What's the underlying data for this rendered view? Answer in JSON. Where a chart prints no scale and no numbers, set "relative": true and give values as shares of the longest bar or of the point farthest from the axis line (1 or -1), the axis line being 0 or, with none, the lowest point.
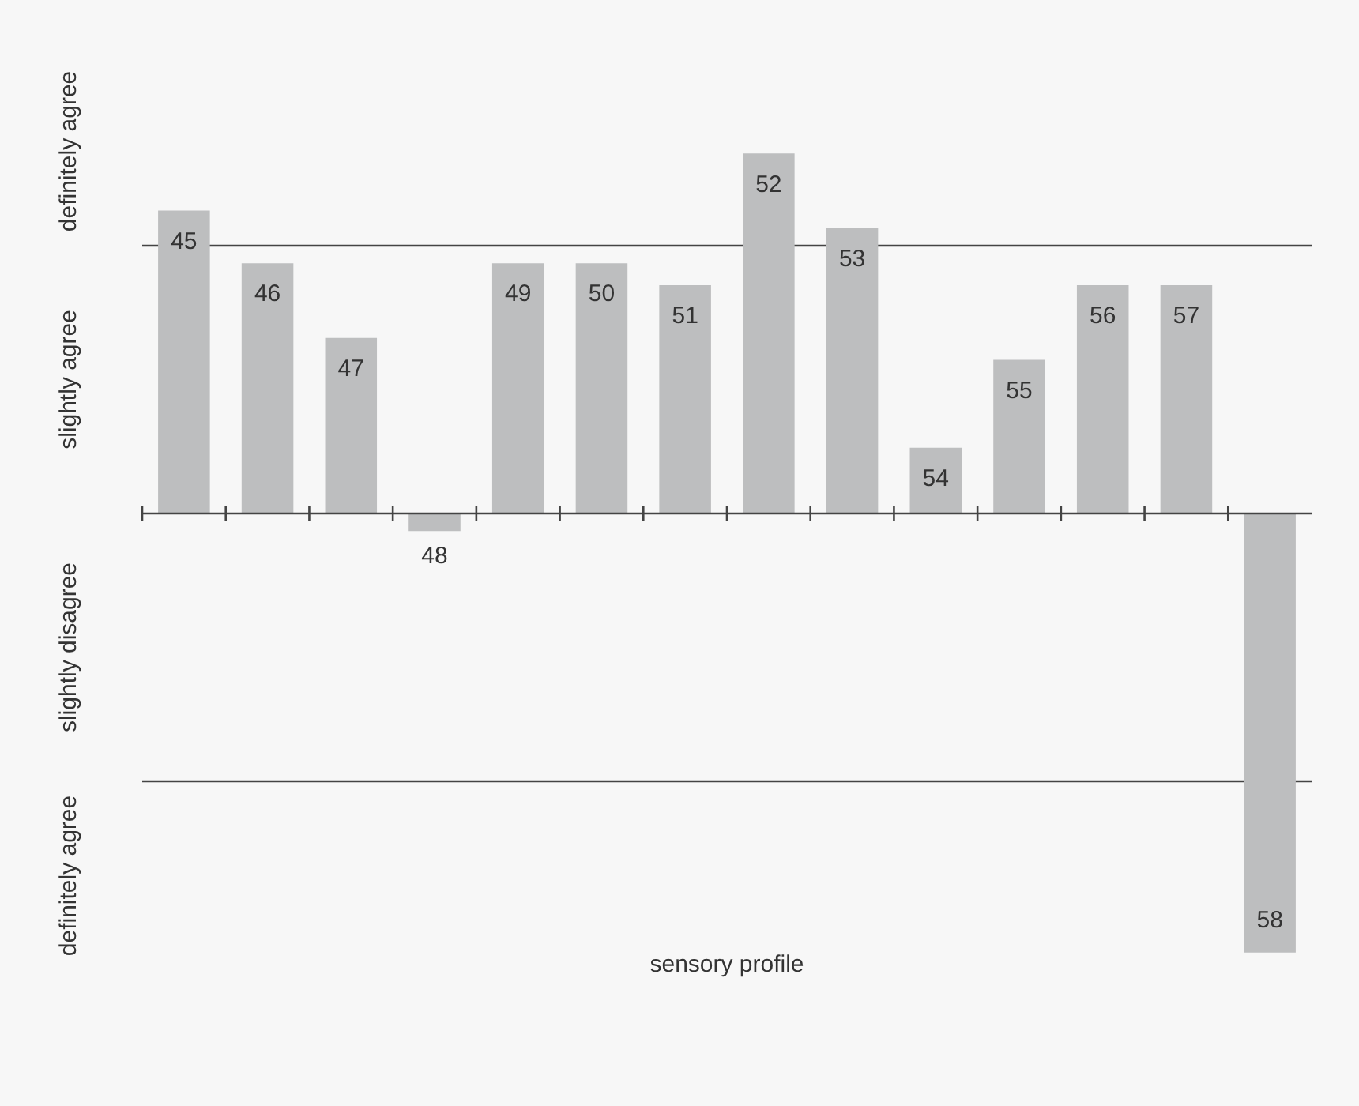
{
  "chart_data": {
    "type": "bar",
    "xlabel": "sensory profile",
    "relative": true,
    "categories": [
      "45",
      "46",
      "47",
      "48",
      "49",
      "50",
      "51",
      "52",
      "53",
      "54",
      "55",
      "56",
      "57",
      "58"
    ],
    "values": [
      0.69,
      0.57,
      0.4,
      -0.04,
      0.57,
      0.57,
      0.52,
      0.82,
      0.65,
      0.15,
      0.35,
      0.52,
      0.52,
      -1
    ],
    "color": "#bdbebf",
    "annotations": [
      "definitely agree",
      "slightly agree",
      "slightly disagree",
      "definitely agree"
    ],
    "ref_lines": [
      {
        "axis": "y",
        "value": 0.61,
        "color": "#444444"
      },
      {
        "axis": "y",
        "value": -0.61,
        "color": "#444444"
      }
    ],
    "legend": false
  }
}
